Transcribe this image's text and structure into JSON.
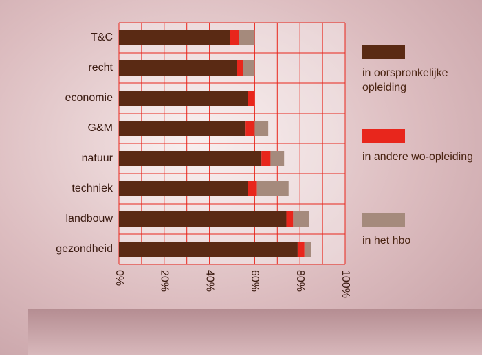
{
  "chart_data": {
    "type": "stacked-bar-horizontal",
    "categories": [
      "T&C",
      "recht",
      "economie",
      "G&M",
      "natuur",
      "techniek",
      "landbouw",
      "gezondheid"
    ],
    "series": [
      {
        "name": "in oorspronkelijke opleiding",
        "color": "#5a2a14",
        "values": [
          49,
          52,
          57,
          56,
          63,
          57,
          74,
          79
        ]
      },
      {
        "name": "in andere wo-opleiding",
        "color": "#e8261c",
        "values": [
          4,
          3,
          3,
          4,
          4,
          4,
          3,
          3
        ]
      },
      {
        "name": "in het hbo",
        "color": "#a58a7c",
        "values": [
          7,
          5,
          0,
          6,
          6,
          14,
          7,
          3
        ]
      }
    ],
    "xlim": [
      0,
      100
    ],
    "xticks": [
      {
        "value": 0,
        "label": "0%"
      },
      {
        "value": 20,
        "label": "20%"
      },
      {
        "value": 40,
        "label": "40%"
      },
      {
        "value": 60,
        "label": "60%"
      },
      {
        "value": 80,
        "label": "80%"
      },
      {
        "value": 100,
        "label": "100%"
      }
    ],
    "grid": true,
    "grid_color": "#e8261c",
    "legend": "right"
  }
}
